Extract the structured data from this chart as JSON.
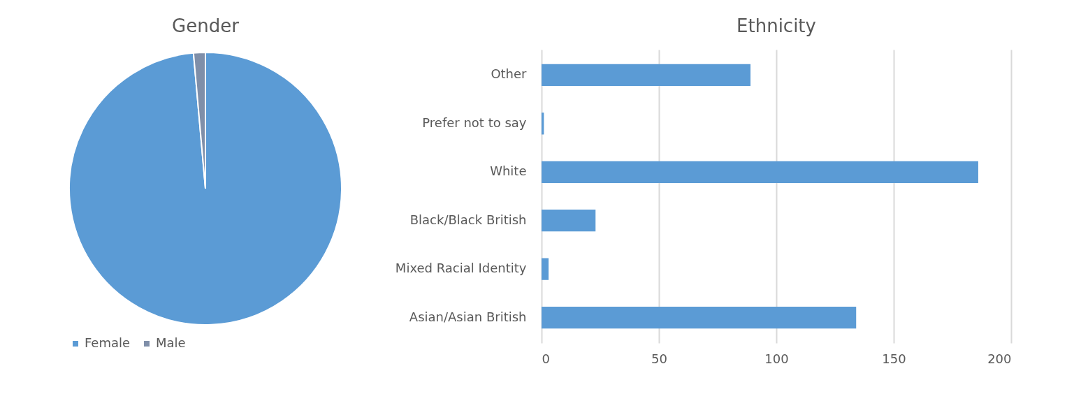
{
  "chart_data": [
    {
      "type": "pie",
      "title": "Gender",
      "categories": [
        "Female",
        "Male"
      ],
      "values": [
        98.6,
        1.4
      ],
      "colors": [
        "#5b9bd5",
        "#7f8fa9"
      ],
      "legend": "bottom"
    },
    {
      "type": "bar",
      "title": "Ethnicity",
      "orientation": "horizontal",
      "categories": [
        "Other",
        "Prefer not to say",
        "White",
        "Black/Black British",
        "Mixed Racial Identity",
        "Asian/Asian British"
      ],
      "values": [
        89,
        1,
        186,
        23,
        3,
        134
      ],
      "color": "#5b9bd5",
      "xlim": [
        0,
        200
      ],
      "xticks": [
        0,
        50,
        100,
        150,
        200
      ],
      "grid": "x"
    }
  ]
}
